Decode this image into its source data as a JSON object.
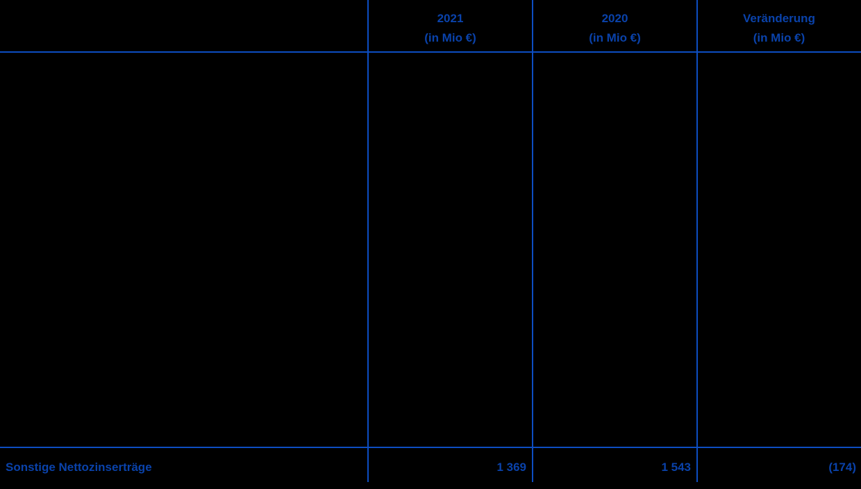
{
  "theme": {
    "bg_color": "#000000",
    "line_color": "#0d4ec2",
    "text_color": "#0a42aa"
  },
  "table": {
    "columns": [
      {
        "header_line1": "2021",
        "header_line2": "(in Mio €)"
      },
      {
        "header_line1": "2020",
        "header_line2": "(in Mio €)"
      },
      {
        "header_line1": "Veränderung",
        "header_line2": "(in Mio €)"
      }
    ],
    "row": {
      "label": "Sonstige Nettozinserträge",
      "values": [
        "1 369",
        "1 543",
        "(174)"
      ]
    }
  }
}
